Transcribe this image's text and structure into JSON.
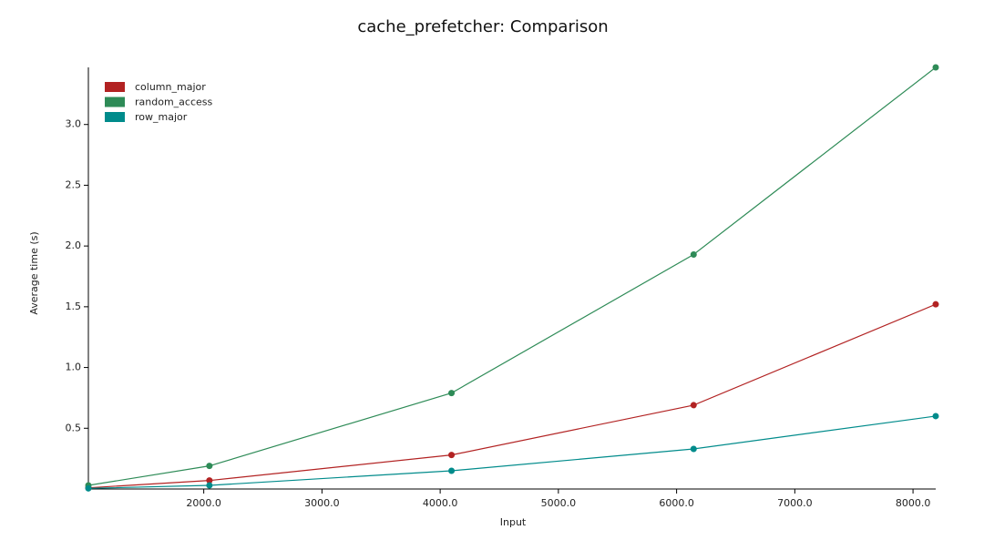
{
  "chart_data": {
    "type": "line",
    "title": "cache_prefetcher: Comparison",
    "x_label": "Input",
    "y_label": "Average time (s)",
    "x": [
      1024,
      2048,
      4096,
      6144,
      8192
    ],
    "series": [
      {
        "name": "column_major",
        "color": "#b22222",
        "values": [
          0.01,
          0.07,
          0.28,
          0.69,
          1.52
        ]
      },
      {
        "name": "random_access",
        "color": "#2e8b57",
        "values": [
          0.03,
          0.19,
          0.79,
          1.93,
          3.47
        ]
      },
      {
        "name": "row_major",
        "color": "#008b8b",
        "values": [
          0.005,
          0.03,
          0.15,
          0.33,
          0.6
        ]
      }
    ],
    "xlim": [
      1024,
      8192
    ],
    "xticks": [
      {
        "value": 2000,
        "label": "2000.0"
      },
      {
        "value": 3000,
        "label": "3000.0"
      },
      {
        "value": 4000,
        "label": "4000.0"
      },
      {
        "value": 5000,
        "label": "5000.0"
      },
      {
        "value": 6000,
        "label": "6000.0"
      },
      {
        "value": 7000,
        "label": "7000.0"
      },
      {
        "value": 8000,
        "label": "8000.0"
      }
    ],
    "ylim": [
      0,
      3.47
    ],
    "yticks": [
      0.5,
      {
        "value": 1,
        "label": "1.0"
      },
      1.5,
      {
        "value": 2,
        "label": "2.0"
      },
      2.5,
      {
        "value": 3,
        "label": "3.0"
      }
    ],
    "grid": false,
    "legend": "top-left"
  }
}
